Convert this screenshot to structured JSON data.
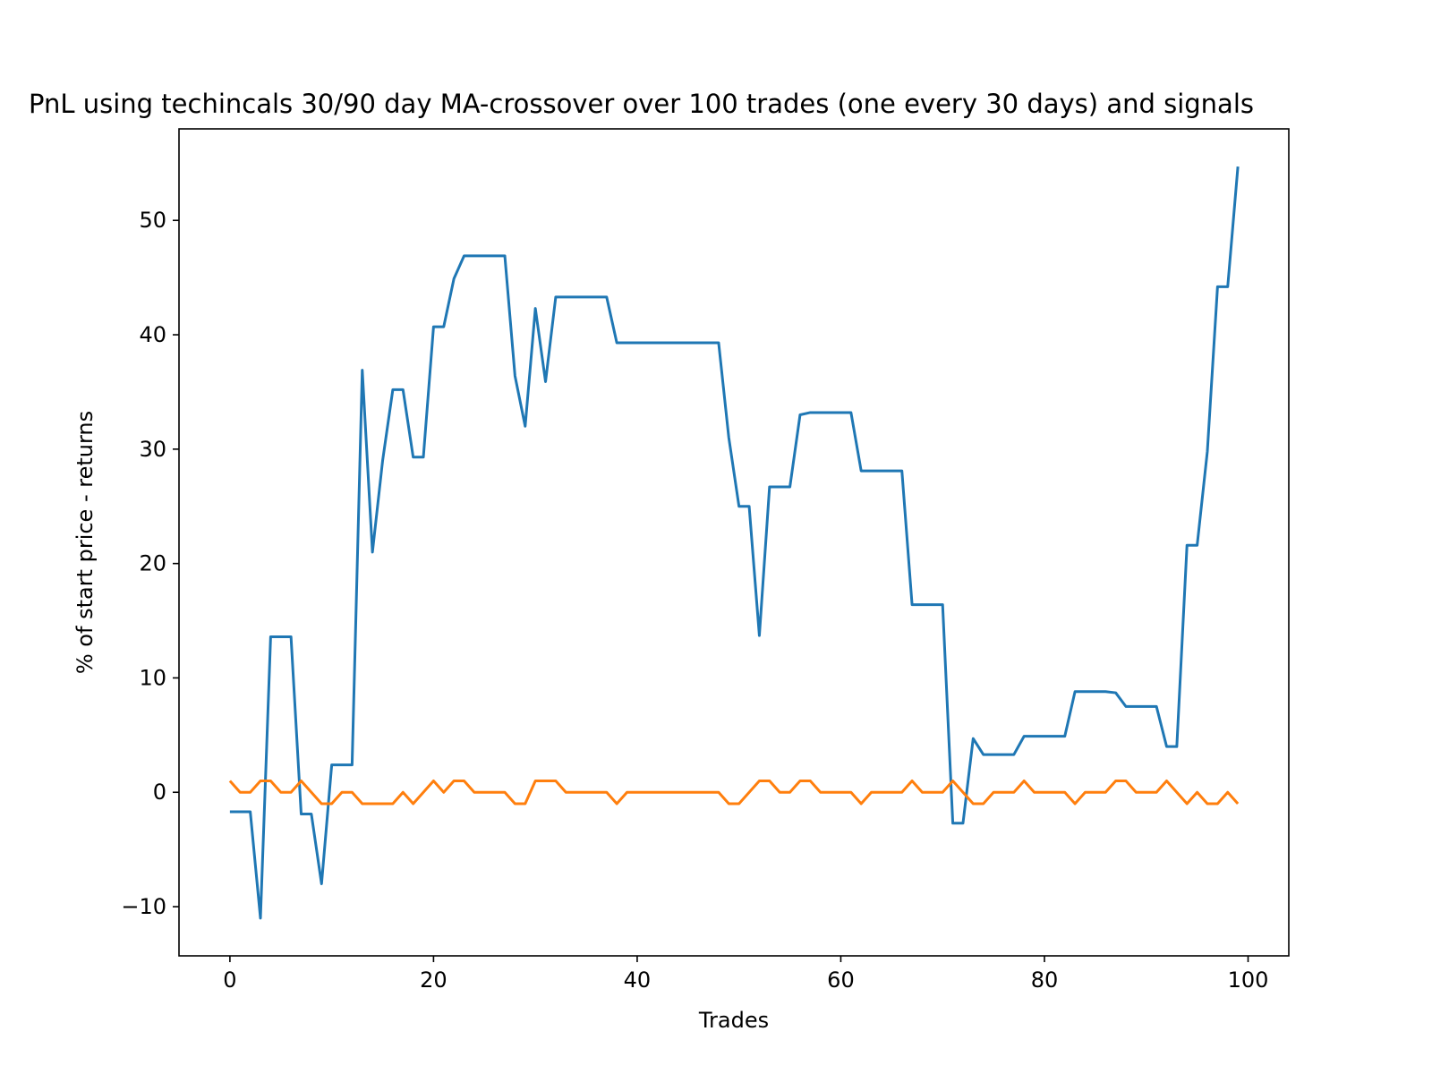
{
  "chart_data": {
    "type": "line",
    "title": "PnL using techincals 30/90 day MA-crossover over 100 trades (one every 30 days) and signals",
    "xlabel": "Trades",
    "ylabel": "% of start price - returns",
    "xlim": [
      -5,
      104
    ],
    "ylim": [
      -14.3,
      58
    ],
    "xticks": [
      0,
      20,
      40,
      60,
      80,
      100
    ],
    "yticks": [
      -10,
      0,
      10,
      20,
      30,
      40,
      50
    ],
    "ytick_labels": [
      "−10",
      "0",
      "10",
      "20",
      "30",
      "40",
      "50"
    ],
    "grid": false,
    "legend": false,
    "x": [
      0,
      1,
      2,
      3,
      4,
      5,
      6,
      7,
      8,
      9,
      10,
      11,
      12,
      13,
      14,
      15,
      16,
      17,
      18,
      19,
      20,
      21,
      22,
      23,
      24,
      25,
      26,
      27,
      28,
      29,
      30,
      31,
      32,
      33,
      34,
      35,
      36,
      37,
      38,
      39,
      40,
      41,
      42,
      43,
      44,
      45,
      46,
      47,
      48,
      49,
      50,
      51,
      52,
      53,
      54,
      55,
      56,
      57,
      58,
      59,
      60,
      61,
      62,
      63,
      64,
      65,
      66,
      67,
      68,
      69,
      70,
      71,
      72,
      73,
      74,
      75,
      76,
      77,
      78,
      79,
      80,
      81,
      82,
      83,
      84,
      85,
      86,
      87,
      88,
      89,
      90,
      91,
      92,
      93,
      94,
      95,
      96,
      97,
      98,
      99
    ],
    "series": [
      {
        "color": "#1f77b4",
        "values": [
          -1.7,
          -1.7,
          -1.7,
          -11,
          13.6,
          13.6,
          13.6,
          -1.9,
          -1.9,
          -8,
          2.4,
          2.4,
          2.4,
          36.9,
          21,
          29,
          35.2,
          35.2,
          29.3,
          29.3,
          40.7,
          40.7,
          44.9,
          46.9,
          46.9,
          46.9,
          46.9,
          46.9,
          36.4,
          32,
          42.3,
          35.9,
          43.3,
          43.3,
          43.3,
          43.3,
          43.3,
          43.3,
          39.3,
          39.3,
          39.3,
          39.3,
          39.3,
          39.3,
          39.3,
          39.3,
          39.3,
          39.3,
          39.3,
          31,
          25,
          25,
          13.7,
          26.7,
          26.7,
          26.7,
          33,
          33.2,
          33.2,
          33.2,
          33.2,
          33.2,
          28.1,
          28.1,
          28.1,
          28.1,
          28.1,
          16.4,
          16.4,
          16.4,
          16.4,
          -2.7,
          -2.7,
          4.7,
          3.3,
          3.3,
          3.3,
          3.3,
          4.9,
          4.9,
          4.9,
          4.9,
          4.9,
          8.8,
          8.8,
          8.8,
          8.8,
          8.7,
          7.5,
          7.5,
          7.5,
          7.5,
          4,
          4,
          21.6,
          21.6,
          29.8,
          44.2,
          44.2,
          54.7
        ]
      },
      {
        "color": "#ff7f0e",
        "values": [
          1,
          0,
          0,
          1,
          1,
          0,
          0,
          1,
          0,
          -1,
          -1,
          0,
          0,
          -1,
          -1,
          -1,
          -1,
          0,
          -1,
          0,
          1,
          0,
          1,
          1,
          0,
          0,
          0,
          0,
          -1,
          -1,
          1,
          1,
          1,
          0,
          0,
          0,
          0,
          0,
          -1,
          0,
          0,
          0,
          0,
          0,
          0,
          0,
          0,
          0,
          0,
          -1,
          -1,
          0,
          1,
          1,
          0,
          0,
          1,
          1,
          0,
          0,
          0,
          0,
          -1,
          0,
          0,
          0,
          0,
          1,
          0,
          0,
          0,
          1,
          0,
          -1,
          -1,
          0,
          0,
          0,
          1,
          0,
          0,
          0,
          0,
          -1,
          0,
          0,
          0,
          1,
          1,
          0,
          0,
          0,
          1,
          0,
          -1,
          0,
          -1,
          -1,
          0,
          -1
        ]
      }
    ]
  }
}
